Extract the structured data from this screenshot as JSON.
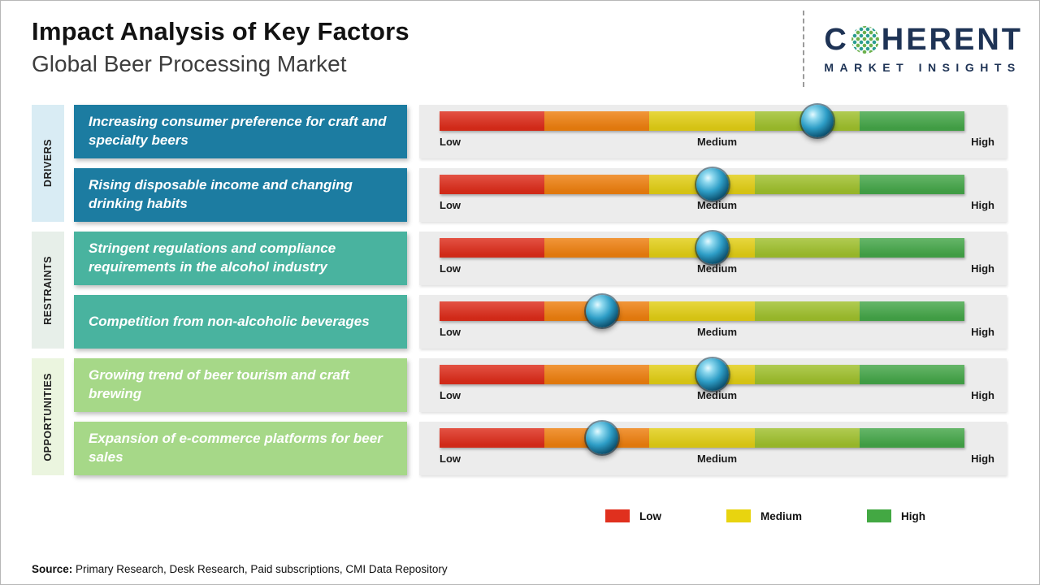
{
  "header": {
    "title": "Impact Analysis of Key Factors",
    "subtitle": "Global Beer Processing Market",
    "logo": {
      "name_prefix": "C",
      "name_suffix": "HERENT",
      "tagline": "MARKET INSIGHTS",
      "brand_color": "#1e3355"
    }
  },
  "scale": {
    "low": "Low",
    "medium": "Medium",
    "high": "High"
  },
  "bar_colors": [
    "#dd2c1a",
    "#ee7f0e",
    "#e2ce14",
    "#9fc02c",
    "#44a648"
  ],
  "categories": [
    {
      "label": "DRIVERS",
      "box_color": "#1c7ca1",
      "strip_color": "#d9ecf4",
      "rows": [
        {
          "text": "Increasing consumer preference for craft and specialty beers",
          "marker_left": "72%"
        },
        {
          "text": "Rising disposable income and changing drinking habits",
          "marker_left": "52%"
        }
      ]
    },
    {
      "label": "RESTRAINTS",
      "box_color": "#49b39f",
      "strip_color": "#e7efe9",
      "rows": [
        {
          "text": "Stringent regulations and compliance requirements in the alcohol industry",
          "marker_left": "52%"
        },
        {
          "text": "Competition from non-alcoholic beverages",
          "marker_left": "31%"
        }
      ]
    },
    {
      "label": "OPPORTUNITIES",
      "box_color": "#a6d888",
      "strip_color": "#ebf5df",
      "rows": [
        {
          "text": "Growing trend of beer tourism and craft brewing",
          "marker_left": "52%"
        },
        {
          "text": "Expansion of e-commerce platforms for beer sales",
          "marker_left": "31%"
        }
      ]
    }
  ],
  "legend": [
    {
      "label": "Low",
      "color": "#e0301e"
    },
    {
      "label": "Medium",
      "color": "#e8d40f"
    },
    {
      "label": "High",
      "color": "#43a843"
    }
  ],
  "source": {
    "label": "Source:",
    "text": " Primary Research, Desk Research, Paid subscriptions, CMI Data Repository"
  },
  "chart_data": {
    "type": "scatter",
    "title": "Impact Analysis of Key Factors",
    "subtitle": "Global Beer Processing Market",
    "scale_labels": [
      "Low",
      "Medium",
      "High"
    ],
    "xlim": [
      0,
      100
    ],
    "legend_position": "bottom-right",
    "series": [
      {
        "category": "Drivers",
        "factor": "Increasing consumer preference for craft and specialty beers",
        "impact_position_pct": 72,
        "impact_level": "Medium-High"
      },
      {
        "category": "Drivers",
        "factor": "Rising disposable income and changing drinking habits",
        "impact_position_pct": 52,
        "impact_level": "Medium"
      },
      {
        "category": "Restraints",
        "factor": "Stringent regulations and compliance requirements in the alcohol industry",
        "impact_position_pct": 52,
        "impact_level": "Medium"
      },
      {
        "category": "Restraints",
        "factor": "Competition from non-alcoholic beverages",
        "impact_position_pct": 31,
        "impact_level": "Low-Medium"
      },
      {
        "category": "Opportunities",
        "factor": "Growing trend of beer tourism and craft brewing",
        "impact_position_pct": 52,
        "impact_level": "Medium"
      },
      {
        "category": "Opportunities",
        "factor": "Expansion of e-commerce platforms for beer sales",
        "impact_position_pct": 31,
        "impact_level": "Low-Medium"
      }
    ]
  }
}
